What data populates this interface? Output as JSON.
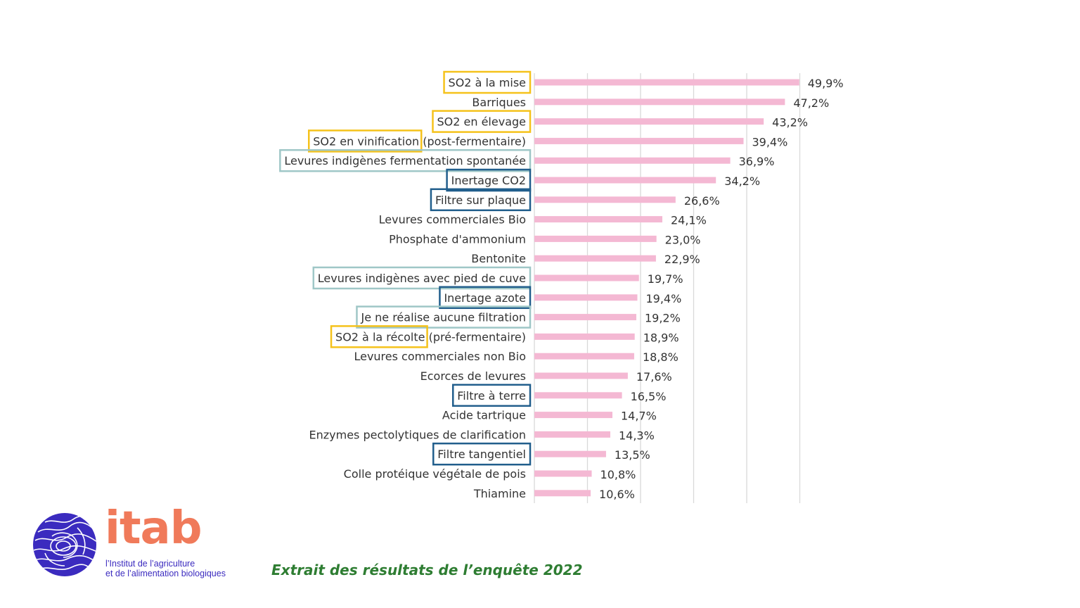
{
  "chart_data": {
    "type": "bar",
    "orientation": "horizontal",
    "title": "",
    "xlabel": "",
    "ylabel": "",
    "xlim": [
      0,
      50
    ],
    "grid": true,
    "legend": "none",
    "bar_color": "#f4b8d3",
    "categories": [
      "SO2 à la mise",
      "Barriques",
      "SO2 en élevage",
      "SO2 en vinification (post-fermentaire)",
      "Levures indigènes fermentation spontanée",
      "Inertage CO2",
      "Filtre sur plaque",
      "Levures commerciales Bio",
      "Phosphate d'ammonium",
      "Bentonite",
      "Levures indigènes avec pied de cuve",
      "Inertage azote",
      "Je ne réalise aucune filtration",
      "SO2 à la récolte (pré-fermentaire)",
      "Levures commerciales non Bio",
      "Ecorces de levures",
      "Filtre à terre",
      "Acide tartrique",
      "Enzymes pectolytiques de clarification",
      "Filtre tangentiel",
      "Colle protéique végétale de pois",
      "Thiamine"
    ],
    "values": [
      49.9,
      47.2,
      43.2,
      39.4,
      36.9,
      34.2,
      26.6,
      24.1,
      23.0,
      22.9,
      19.7,
      19.4,
      19.2,
      18.9,
      18.8,
      17.6,
      16.5,
      14.7,
      14.3,
      13.5,
      10.8,
      10.6
    ],
    "value_labels": [
      "49,9%",
      "47,2%",
      "43,2%",
      "39,4%",
      "36,9%",
      "34,2%",
      "26,6%",
      "24,1%",
      "23,0%",
      "22,9%",
      "19,7%",
      "19,4%",
      "19,2%",
      "18,9%",
      "18,8%",
      "17,6%",
      "16,5%",
      "14,7%",
      "14,3%",
      "13,5%",
      "10,8%",
      "10,6%"
    ],
    "highlights": [
      {
        "index": 0,
        "group": "so2",
        "color": "#f5c21b"
      },
      {
        "index": 2,
        "group": "so2",
        "color": "#f5c21b"
      },
      {
        "index": 3,
        "group": "so2",
        "color": "#f5c21b"
      },
      {
        "index": 13,
        "group": "so2",
        "color": "#f5c21b"
      },
      {
        "index": 4,
        "group": "indigenous",
        "color": "#9fc7c7"
      },
      {
        "index": 10,
        "group": "indigenous",
        "color": "#9fc7c7"
      },
      {
        "index": 12,
        "group": "indigenous",
        "color": "#9fc7c7"
      },
      {
        "index": 5,
        "group": "equipment",
        "color": "#215e8c"
      },
      {
        "index": 6,
        "group": "equipment",
        "color": "#215e8c"
      },
      {
        "index": 11,
        "group": "equipment",
        "color": "#215e8c"
      },
      {
        "index": 16,
        "group": "equipment",
        "color": "#215e8c"
      },
      {
        "index": 19,
        "group": "equipment",
        "color": "#215e8c"
      }
    ]
  },
  "logo": {
    "word": "itab",
    "subtitle_line1": "l’Institut de l’agriculture",
    "subtitle_line2": "et de l’alimentation biologiques",
    "icon": "fingerprint-globe-icon",
    "color_word": "#f07a5a",
    "color_icon": "#3b2bbf"
  },
  "caption": "Extrait des résultats de l’enquête 2022"
}
